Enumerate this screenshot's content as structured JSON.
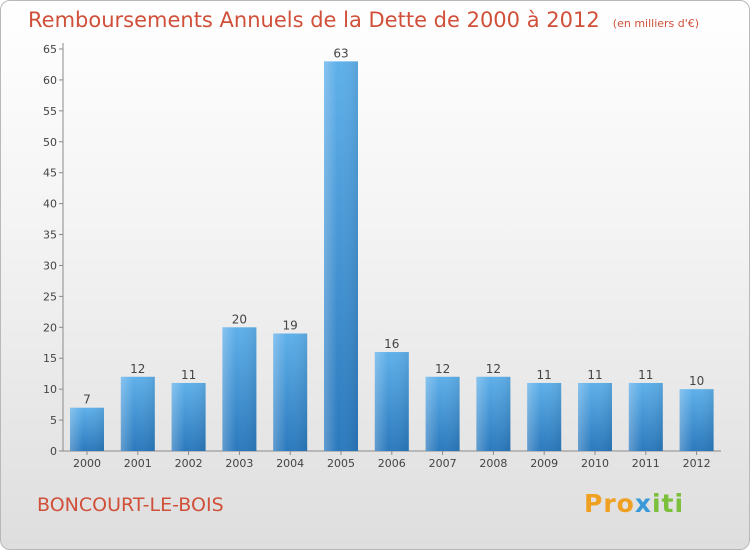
{
  "chart_data": {
    "type": "bar",
    "title": "Remboursements Annuels de la Dette de 2000 à 2012",
    "unit": "(en milliers d'€)",
    "categories": [
      "2000",
      "2001",
      "2002",
      "2003",
      "2004",
      "2005",
      "2006",
      "2007",
      "2008",
      "2009",
      "2010",
      "2011",
      "2012"
    ],
    "values": [
      7,
      12,
      11,
      20,
      19,
      63,
      16,
      12,
      12,
      11,
      11,
      11,
      10
    ],
    "ylim": [
      0,
      65
    ],
    "yticks": [
      0,
      5,
      10,
      15,
      20,
      25,
      30,
      35,
      40,
      45,
      50,
      55,
      60,
      65
    ],
    "grid": false,
    "bar_color": "#3a8fd6"
  },
  "footer": {
    "commune": "BONCOURT-LE-BOIS",
    "logo": "Proxiti"
  }
}
